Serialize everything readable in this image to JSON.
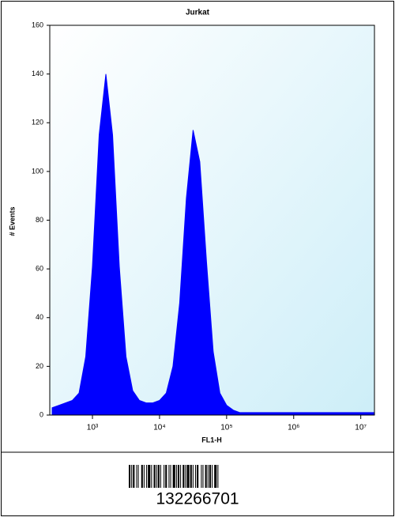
{
  "chart_data": {
    "type": "histogram",
    "title": "Jurkat",
    "xlabel": "FL1-H",
    "ylabel": "# Events",
    "log_x": true,
    "color": "#0000ff",
    "background": "#e4f5fb",
    "x": [
      251,
      316,
      398,
      501,
      631,
      794,
      1000,
      1259,
      1585,
      1995,
      2512,
      3162,
      3981,
      5012,
      6310,
      7943,
      10000,
      12589,
      15849,
      19953,
      25119,
      31623,
      39811,
      50119,
      63096,
      79433,
      100000,
      125893,
      158489,
      199526,
      251189,
      316228,
      398107,
      501187,
      630957,
      794328,
      1000000,
      1258925,
      1584893,
      1995262,
      2511886,
      3162278,
      3981072,
      5011872,
      6309573,
      7943282,
      10000000,
      12589254,
      15848932
    ],
    "values": [
      3,
      4,
      5,
      6,
      9,
      24,
      61,
      115,
      140,
      115,
      61,
      24,
      10,
      6,
      5,
      5,
      6,
      9,
      20,
      46,
      89,
      117,
      104,
      63,
      26,
      9,
      4,
      2,
      1,
      1,
      1,
      1,
      1,
      1,
      1,
      1,
      1,
      1,
      1,
      1,
      1,
      1,
      1,
      1,
      1,
      1,
      1,
      1,
      1
    ],
    "xlim": [
      231,
      16000000
    ],
    "xticks": [
      {
        "value": 1000,
        "label": "10³"
      },
      {
        "value": 10000,
        "label": "10⁴"
      },
      {
        "value": 100000,
        "label": "10⁵"
      },
      {
        "value": 1000000,
        "label": "10⁶"
      },
      {
        "value": 10000000,
        "label": "10⁷"
      }
    ],
    "ylim": [
      0,
      160
    ],
    "yticks": [
      0,
      20,
      40,
      60,
      80,
      100,
      120,
      140,
      160
    ]
  },
  "barcode": {
    "number": "132266701"
  }
}
